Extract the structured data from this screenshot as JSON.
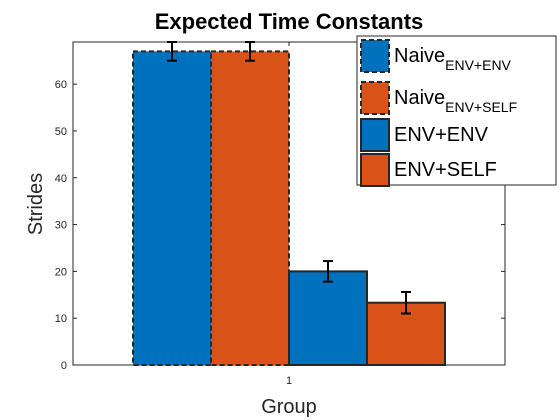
{
  "chart_data": {
    "type": "bar",
    "title": "Expected Time Constants",
    "xlabel": "Group",
    "ylabel": "Strides",
    "categories": [
      "1"
    ],
    "ylim": [
      0,
      69
    ],
    "yticks": [
      0,
      10,
      20,
      30,
      40,
      50,
      60
    ],
    "grid": false,
    "legend_position": "top-right",
    "series": [
      {
        "name": "Naive",
        "subscript": "ENV+ENV",
        "value": 67,
        "error": 2,
        "color": "#0072BD",
        "style": "dashed"
      },
      {
        "name": "Naive",
        "subscript": "ENV+SELF",
        "value": 67,
        "error": 2,
        "color": "#D95319",
        "style": "dashed"
      },
      {
        "name": "ENV+ENV",
        "subscript": "",
        "value": 20,
        "error": 2.2,
        "color": "#0072BD",
        "style": "solid"
      },
      {
        "name": "ENV+SELF",
        "subscript": "",
        "value": 13.3,
        "error": 2.3,
        "color": "#D95319",
        "style": "solid"
      }
    ]
  }
}
